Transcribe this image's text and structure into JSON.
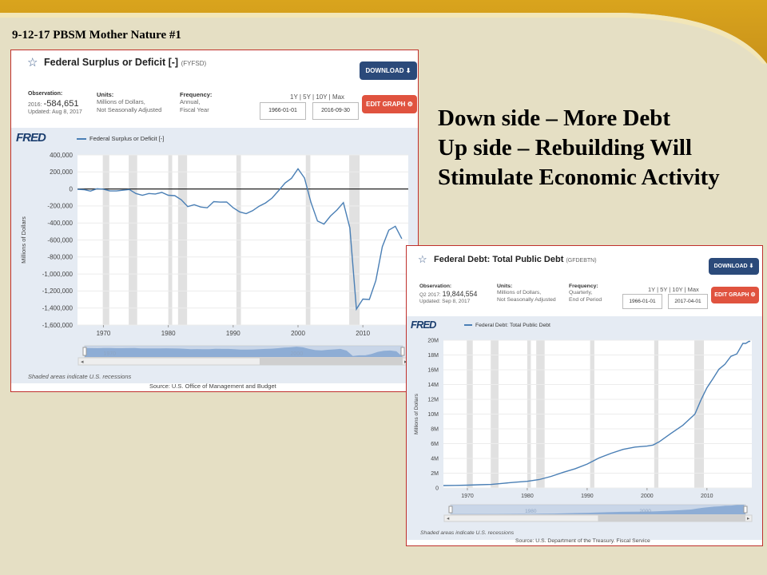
{
  "slide": {
    "title": "9-12-17 PBSM Mother Nature #1",
    "callout_lines": [
      "Down side – More Debt",
      "Up side – Rebuilding Will",
      "Stimulate Economic Activity"
    ],
    "colors": {
      "background": "#e5dfc4",
      "band": "#d8a41e",
      "panel_border": "#c0302c"
    }
  },
  "panels": [
    {
      "title": "Federal Surplus or Deficit [-]",
      "code": "(FYFSD)",
      "download_label": "DOWNLOAD",
      "edit_label": "EDIT GRAPH",
      "observation_label": "Observation:",
      "observation_period": "2016:",
      "observation_value": "-584,651",
      "updated": "Updated: Aug 8, 2017",
      "units_label": "Units:",
      "units_lines": [
        "Millions of Dollars,",
        "Not Seasonally Adjusted"
      ],
      "frequency_label": "Frequency:",
      "frequency_lines": [
        "Annual,",
        "Fiscal Year"
      ],
      "range_options": "1Y | 5Y | 10Y | Max",
      "start_date": "1966-01-01",
      "end_date": "2016-09-30",
      "fred_logo": "FRED",
      "legend": "Federal Surplus or Deficit [-]",
      "navigator_years": [
        "1970",
        "2000"
      ],
      "note": "Shaded areas indicate U.S. recessions",
      "source": "Source: U.S. Office of Management and Budget"
    },
    {
      "title": "Federal Debt: Total Public Debt",
      "code": "(GFDEBTN)",
      "download_label": "DOWNLOAD",
      "edit_label": "EDIT GRAPH",
      "observation_label": "Observation:",
      "observation_period": "Q2 2017:",
      "observation_value": "19,844,554",
      "updated": "Updated: Sep 8, 2017",
      "units_label": "Units:",
      "units_lines": [
        "Millions of Dollars,",
        "Not Seasonally Adjusted"
      ],
      "frequency_label": "Frequency:",
      "frequency_lines": [
        "Quarterly,",
        "End of Period"
      ],
      "range_options": "1Y | 5Y | 10Y | Max",
      "start_date": "1966-01-01",
      "end_date": "2017-04-01",
      "fred_logo": "FRED",
      "legend": "Federal Debt: Total Public Debt",
      "navigator_years": [
        "1980",
        "2000"
      ],
      "note": "Shaded areas indicate U.S. recessions",
      "source": "Source: U.S. Department of the Treasury. Fiscal Service"
    }
  ],
  "chart_data": [
    {
      "type": "line",
      "title": "Federal Surplus or Deficit [-]",
      "ylabel": "Millions of Dollars",
      "xlim": [
        1966,
        2017
      ],
      "ylim": [
        -1600000,
        400000
      ],
      "yticks": [
        400000,
        200000,
        0,
        -200000,
        -400000,
        -600000,
        -800000,
        -1000000,
        -1200000,
        -1400000,
        -1600000
      ],
      "ytick_labels": [
        "400,000",
        "200,000",
        "0",
        "-200,000",
        "-400,000",
        "-600,000",
        "-800,000",
        "-1,000,000",
        "-1,200,000",
        "-1,400,000",
        "-1,600,000"
      ],
      "xticks": [
        1970,
        1980,
        1990,
        2000,
        2010
      ],
      "xtick_labels": [
        "1970",
        "1980",
        "1990",
        "2000",
        "2010"
      ],
      "zero_line": true,
      "recessions": [
        [
          1969.9,
          1970.9
        ],
        [
          1973.9,
          1975.2
        ],
        [
          1980.0,
          1980.6
        ],
        [
          1981.5,
          1982.9
        ],
        [
          1990.5,
          1991.2
        ],
        [
          2001.2,
          2001.9
        ],
        [
          2007.9,
          2009.5
        ]
      ],
      "line_color": "#4a7fb5",
      "series": [
        {
          "x": [
            1966,
            1967,
            1968,
            1969,
            1970,
            1971,
            1972,
            1973,
            1974,
            1975,
            1976,
            1977,
            1978,
            1979,
            1980,
            1981,
            1982,
            1983,
            1984,
            1985,
            1986,
            1987,
            1988,
            1989,
            1990,
            1991,
            1992,
            1993,
            1994,
            1995,
            1996,
            1997,
            1998,
            1999,
            2000,
            2001,
            2002,
            2003,
            2004,
            2005,
            2006,
            2007,
            2008,
            2009,
            2010,
            2011,
            2012,
            2013,
            2014,
            2015,
            2016
          ],
          "y": [
            -3698,
            -8643,
            -25161,
            3242,
            -2842,
            -23033,
            -23373,
            -14908,
            -6135,
            -53242,
            -73732,
            -53659,
            -59185,
            -40726,
            -73830,
            -78968,
            -127977,
            -207802,
            -185367,
            -212308,
            -221227,
            -149730,
            -155178,
            -152639,
            -221036,
            -269238,
            -290321,
            -255051,
            -203186,
            -163952,
            -107431,
            -21884,
            69270,
            125610,
            236241,
            128236,
            -157758,
            -377585,
            -412727,
            -318346,
            -248181,
            -160701,
            -458553,
            -1412688,
            -1294373,
            -1299599,
            -1076573,
            -679775,
            -484602,
            -438496,
            -584651
          ]
        }
      ]
    },
    {
      "type": "line",
      "title": "Federal Debt: Total Public Debt",
      "ylabel": "Millions of Dollars",
      "xlim": [
        1966,
        2017.5
      ],
      "ylim": [
        0,
        20000000
      ],
      "yticks": [
        0,
        2000000,
        4000000,
        6000000,
        8000000,
        10000000,
        12000000,
        14000000,
        16000000,
        18000000,
        20000000
      ],
      "ytick_labels": [
        "0",
        "2M",
        "4M",
        "6M",
        "8M",
        "10M",
        "12M",
        "14M",
        "16M",
        "18M",
        "20M"
      ],
      "xticks": [
        1970,
        1980,
        1990,
        2000,
        2010
      ],
      "xtick_labels": [
        "1970",
        "1980",
        "1990",
        "2000",
        "2010"
      ],
      "recessions": [
        [
          1969.9,
          1970.9
        ],
        [
          1973.9,
          1975.2
        ],
        [
          1980.0,
          1980.6
        ],
        [
          1981.5,
          1982.9
        ],
        [
          1990.5,
          1991.2
        ],
        [
          2001.2,
          2001.9
        ],
        [
          2007.9,
          2009.5
        ]
      ],
      "line_color": "#4a7fb5",
      "series": [
        {
          "x": [
            1966,
            1968,
            1970,
            1972,
            1974,
            1976,
            1978,
            1980,
            1982,
            1984,
            1986,
            1988,
            1990,
            1992,
            1994,
            1996,
            1998,
            2000,
            2001,
            2002,
            2004,
            2006,
            2008,
            2009,
            2010,
            2011,
            2012,
            2013,
            2014,
            2015,
            2016,
            2016.5,
            2017,
            2017.25
          ],
          "y": [
            320000,
            350000,
            380000,
            430000,
            480000,
            630000,
            780000,
            900000,
            1140000,
            1570000,
            2120000,
            2600000,
            3230000,
            4060000,
            4690000,
            5220000,
            5530000,
            5670000,
            5800000,
            6230000,
            7380000,
            8500000,
            10000000,
            11900000,
            13560000,
            14790000,
            16070000,
            16740000,
            17820000,
            18150000,
            19570000,
            19570000,
            19840000,
            19844554
          ]
        }
      ]
    }
  ]
}
